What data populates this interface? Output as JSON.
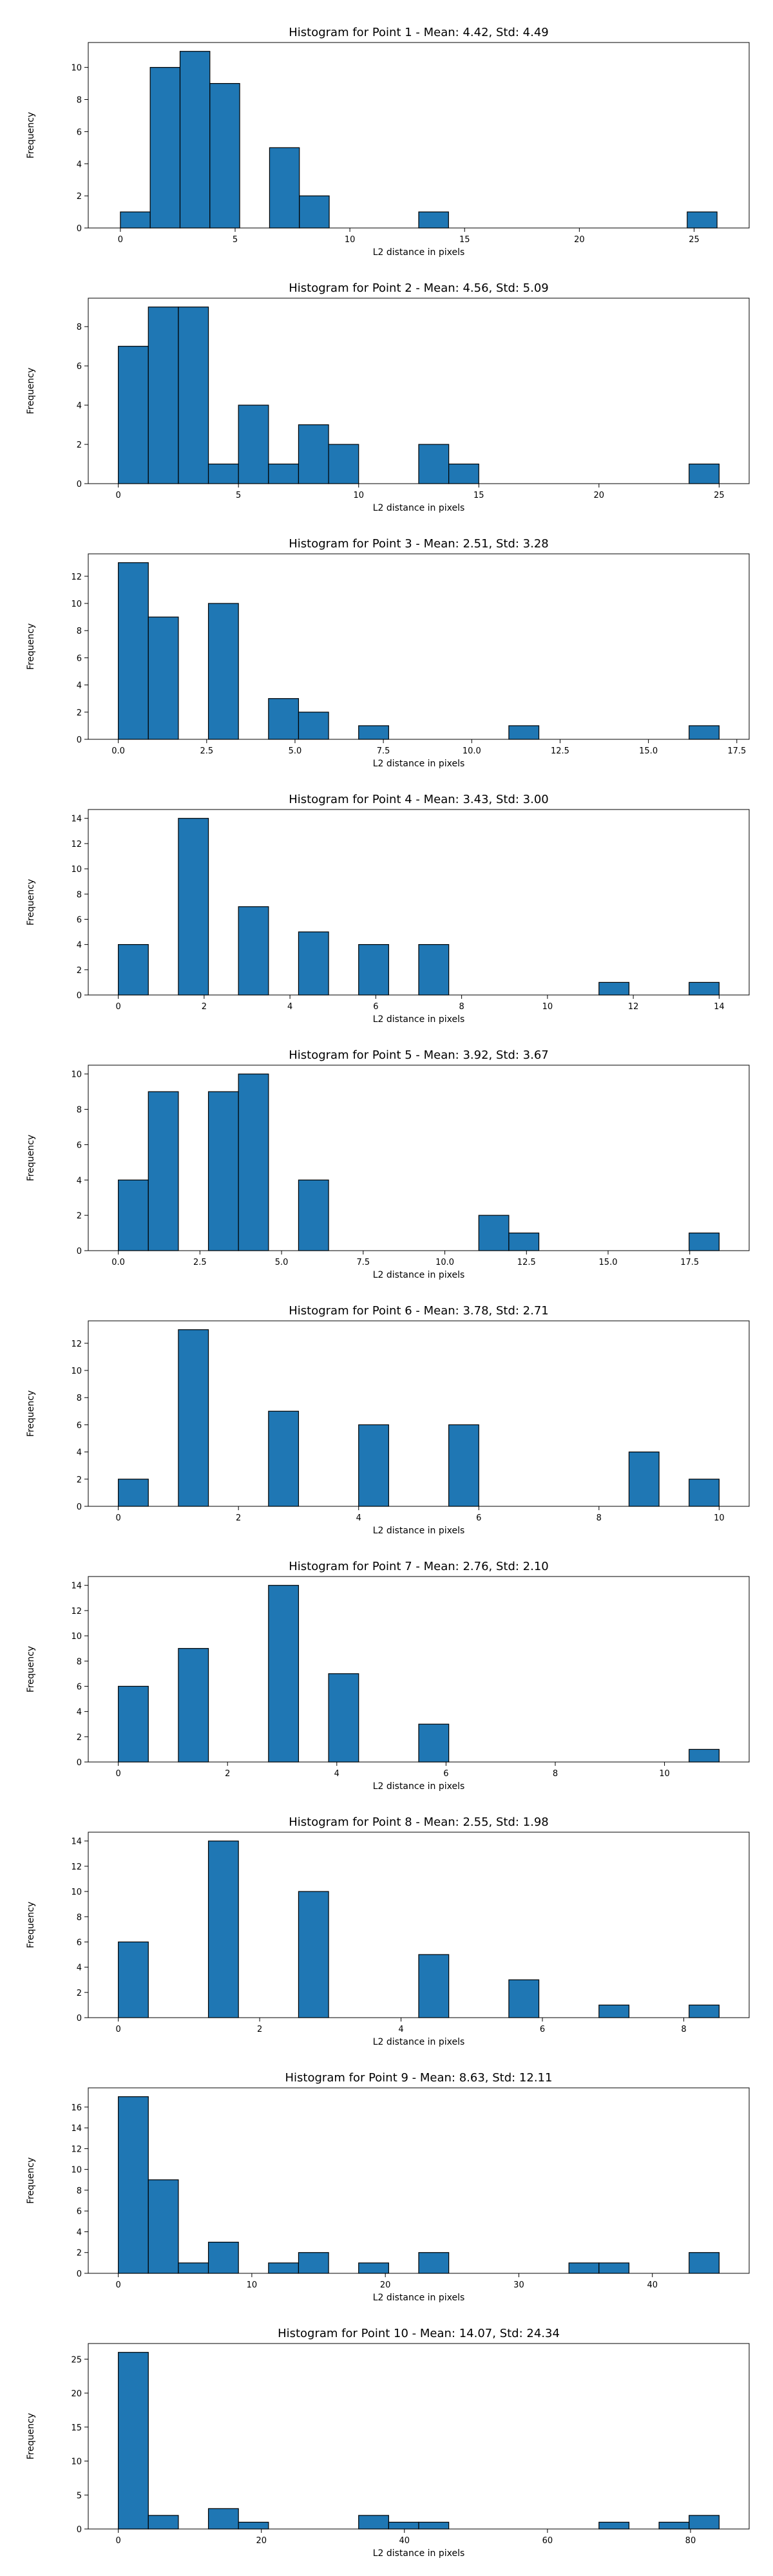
{
  "colors": {
    "bar_fill": "#1f77b4",
    "bar_edge": "#000000",
    "axis": "#000000",
    "background": "#ffffff"
  },
  "chart_data": [
    {
      "type": "bar",
      "title": "Histogram for Point 1 - Mean: 4.42, Std: 4.49",
      "xlabel": "L2 distance in pixels",
      "ylabel": "Frequency",
      "xlim": [
        -1.4,
        27.4
      ],
      "ylim": [
        0,
        11.55
      ],
      "xticks": [
        0,
        5,
        10,
        15,
        20,
        25
      ],
      "xtick_labels": [
        "0",
        "5",
        "10",
        "15",
        "20",
        "25"
      ],
      "yticks": [
        0,
        2,
        4,
        6,
        8,
        10
      ],
      "ytick_labels": [
        "0",
        "2",
        "4",
        "6",
        "8",
        "10"
      ],
      "grid": false,
      "bins": [
        {
          "x0": 0.0,
          "x1": 1.3,
          "count": 1
        },
        {
          "x0": 1.3,
          "x1": 2.6,
          "count": 10
        },
        {
          "x0": 2.6,
          "x1": 3.9,
          "count": 11
        },
        {
          "x0": 3.9,
          "x1": 5.2,
          "count": 9
        },
        {
          "x0": 6.5,
          "x1": 7.8,
          "count": 5
        },
        {
          "x0": 7.8,
          "x1": 9.1,
          "count": 2
        },
        {
          "x0": 13.0,
          "x1": 14.3,
          "count": 1
        },
        {
          "x0": 24.7,
          "x1": 26.0,
          "count": 1
        }
      ]
    },
    {
      "type": "bar",
      "title": "Histogram for Point 2 - Mean: 4.56, Std: 5.09",
      "xlabel": "L2 distance in pixels",
      "ylabel": "Frequency",
      "xlim": [
        -1.25,
        26.25
      ],
      "ylim": [
        0,
        9.45
      ],
      "xticks": [
        0,
        5,
        10,
        15,
        20,
        25
      ],
      "xtick_labels": [
        "0",
        "5",
        "10",
        "15",
        "20",
        "25"
      ],
      "yticks": [
        0,
        2,
        4,
        6,
        8
      ],
      "ytick_labels": [
        "0",
        "2",
        "4",
        "6",
        "8"
      ],
      "grid": false,
      "bins": [
        {
          "x0": 0.0,
          "x1": 1.25,
          "count": 7
        },
        {
          "x0": 1.25,
          "x1": 2.5,
          "count": 9
        },
        {
          "x0": 2.5,
          "x1": 3.75,
          "count": 9
        },
        {
          "x0": 3.75,
          "x1": 5.0,
          "count": 1
        },
        {
          "x0": 5.0,
          "x1": 6.25,
          "count": 4
        },
        {
          "x0": 6.25,
          "x1": 7.5,
          "count": 1
        },
        {
          "x0": 7.5,
          "x1": 8.75,
          "count": 3
        },
        {
          "x0": 8.75,
          "x1": 10.0,
          "count": 2
        },
        {
          "x0": 12.5,
          "x1": 13.75,
          "count": 2
        },
        {
          "x0": 13.75,
          "x1": 15.0,
          "count": 1
        },
        {
          "x0": 23.75,
          "x1": 25.0,
          "count": 1
        }
      ]
    },
    {
      "type": "bar",
      "title": "Histogram for Point 3 - Mean: 2.51, Std: 3.28",
      "xlabel": "L2 distance in pixels",
      "ylabel": "Frequency",
      "xlim": [
        -0.85,
        17.85
      ],
      "ylim": [
        0,
        13.65
      ],
      "xticks": [
        0,
        2.5,
        5,
        7.5,
        10,
        12.5,
        15,
        17.5
      ],
      "xtick_labels": [
        "0.0",
        "2.5",
        "5.0",
        "7.5",
        "10.0",
        "12.5",
        "15.0",
        "17.5"
      ],
      "yticks": [
        0,
        2,
        4,
        6,
        8,
        10,
        12
      ],
      "ytick_labels": [
        "0",
        "2",
        "4",
        "6",
        "8",
        "10",
        "12"
      ],
      "grid": false,
      "bins": [
        {
          "x0": 0.0,
          "x1": 0.85,
          "count": 13
        },
        {
          "x0": 0.85,
          "x1": 1.7,
          "count": 9
        },
        {
          "x0": 2.55,
          "x1": 3.4,
          "count": 10
        },
        {
          "x0": 4.25,
          "x1": 5.1,
          "count": 3
        },
        {
          "x0": 5.1,
          "x1": 5.95,
          "count": 2
        },
        {
          "x0": 6.8,
          "x1": 7.65,
          "count": 1
        },
        {
          "x0": 11.05,
          "x1": 11.9,
          "count": 1
        },
        {
          "x0": 16.15,
          "x1": 17.0,
          "count": 1
        }
      ]
    },
    {
      "type": "bar",
      "title": "Histogram for Point 4 - Mean: 3.43, Std: 3.00",
      "xlabel": "L2 distance in pixels",
      "ylabel": "Frequency",
      "xlim": [
        -0.7,
        14.7
      ],
      "ylim": [
        0,
        14.7
      ],
      "xticks": [
        0,
        2,
        4,
        6,
        8,
        10,
        12,
        14
      ],
      "xtick_labels": [
        "0",
        "2",
        "4",
        "6",
        "8",
        "10",
        "12",
        "14"
      ],
      "yticks": [
        0,
        2,
        4,
        6,
        8,
        10,
        12,
        14
      ],
      "ytick_labels": [
        "0",
        "2",
        "4",
        "6",
        "8",
        "10",
        "12",
        "14"
      ],
      "grid": false,
      "bins": [
        {
          "x0": 0.0,
          "x1": 0.7,
          "count": 4
        },
        {
          "x0": 1.4,
          "x1": 2.1,
          "count": 14
        },
        {
          "x0": 2.8,
          "x1": 3.5,
          "count": 7
        },
        {
          "x0": 4.2,
          "x1": 4.9,
          "count": 5
        },
        {
          "x0": 5.6,
          "x1": 6.3,
          "count": 4
        },
        {
          "x0": 7.0,
          "x1": 7.7,
          "count": 4
        },
        {
          "x0": 11.2,
          "x1": 11.9,
          "count": 1
        },
        {
          "x0": 13.3,
          "x1": 14.0,
          "count": 1
        }
      ]
    },
    {
      "type": "bar",
      "title": "Histogram for Point 5 - Mean: 3.92, Std: 3.67",
      "xlabel": "L2 distance in pixels",
      "ylabel": "Frequency",
      "xlim": [
        -0.92,
        19.32
      ],
      "ylim": [
        0,
        10.5
      ],
      "xticks": [
        0,
        2.5,
        5,
        7.5,
        10,
        12.5,
        15,
        17.5
      ],
      "xtick_labels": [
        "0.0",
        "2.5",
        "5.0",
        "7.5",
        "10.0",
        "12.5",
        "15.0",
        "17.5"
      ],
      "yticks": [
        0,
        2,
        4,
        6,
        8,
        10
      ],
      "ytick_labels": [
        "0",
        "2",
        "4",
        "6",
        "8",
        "10"
      ],
      "grid": false,
      "bins": [
        {
          "x0": 0.0,
          "x1": 0.92,
          "count": 4
        },
        {
          "x0": 0.92,
          "x1": 1.84,
          "count": 9
        },
        {
          "x0": 2.76,
          "x1": 3.68,
          "count": 9
        },
        {
          "x0": 3.68,
          "x1": 4.6,
          "count": 10
        },
        {
          "x0": 5.52,
          "x1": 6.44,
          "count": 4
        },
        {
          "x0": 11.04,
          "x1": 11.96,
          "count": 2
        },
        {
          "x0": 11.96,
          "x1": 12.88,
          "count": 1
        },
        {
          "x0": 17.48,
          "x1": 18.4,
          "count": 1
        }
      ]
    },
    {
      "type": "bar",
      "title": "Histogram for Point 6 - Mean: 3.78, Std: 2.71",
      "xlabel": "L2 distance in pixels",
      "ylabel": "Frequency",
      "xlim": [
        -0.5,
        10.5
      ],
      "ylim": [
        0,
        13.65
      ],
      "xticks": [
        0,
        2,
        4,
        6,
        8,
        10
      ],
      "xtick_labels": [
        "0",
        "2",
        "4",
        "6",
        "8",
        "10"
      ],
      "yticks": [
        0,
        2,
        4,
        6,
        8,
        10,
        12
      ],
      "ytick_labels": [
        "0",
        "2",
        "4",
        "6",
        "8",
        "10",
        "12"
      ],
      "grid": false,
      "bins": [
        {
          "x0": 0.0,
          "x1": 0.5,
          "count": 2
        },
        {
          "x0": 1.0,
          "x1": 1.5,
          "count": 13
        },
        {
          "x0": 2.5,
          "x1": 3.0,
          "count": 7
        },
        {
          "x0": 4.0,
          "x1": 4.5,
          "count": 6
        },
        {
          "x0": 5.5,
          "x1": 6.0,
          "count": 6
        },
        {
          "x0": 8.5,
          "x1": 9.0,
          "count": 4
        },
        {
          "x0": 9.5,
          "x1": 10.0,
          "count": 2
        }
      ]
    },
    {
      "type": "bar",
      "title": "Histogram for Point 7 - Mean: 2.76, Std: 2.10",
      "xlabel": "L2 distance in pixels",
      "ylabel": "Frequency",
      "xlim": [
        -0.55,
        11.55
      ],
      "ylim": [
        0,
        14.7
      ],
      "xticks": [
        0,
        2,
        4,
        6,
        8,
        10
      ],
      "xtick_labels": [
        "0",
        "2",
        "4",
        "6",
        "8",
        "10"
      ],
      "yticks": [
        0,
        2,
        4,
        6,
        8,
        10,
        12,
        14
      ],
      "ytick_labels": [
        "0",
        "2",
        "4",
        "6",
        "8",
        "10",
        "12",
        "14"
      ],
      "grid": false,
      "bins": [
        {
          "x0": 0.0,
          "x1": 0.55,
          "count": 6
        },
        {
          "x0": 1.1,
          "x1": 1.65,
          "count": 9
        },
        {
          "x0": 2.75,
          "x1": 3.3,
          "count": 14
        },
        {
          "x0": 3.85,
          "x1": 4.4,
          "count": 7
        },
        {
          "x0": 5.5,
          "x1": 6.05,
          "count": 3
        },
        {
          "x0": 10.45,
          "x1": 11.0,
          "count": 1
        }
      ]
    },
    {
      "type": "bar",
      "title": "Histogram for Point 8 - Mean: 2.55, Std: 1.98",
      "xlabel": "L2 distance in pixels",
      "ylabel": "Frequency",
      "xlim": [
        -0.425,
        8.925
      ],
      "ylim": [
        0,
        14.7
      ],
      "xticks": [
        0,
        2,
        4,
        6,
        8
      ],
      "xtick_labels": [
        "0",
        "2",
        "4",
        "6",
        "8"
      ],
      "yticks": [
        0,
        2,
        4,
        6,
        8,
        10,
        12,
        14
      ],
      "ytick_labels": [
        "0",
        "2",
        "4",
        "6",
        "8",
        "10",
        "12",
        "14"
      ],
      "grid": false,
      "bins": [
        {
          "x0": 0.0,
          "x1": 0.425,
          "count": 6
        },
        {
          "x0": 1.275,
          "x1": 1.7,
          "count": 14
        },
        {
          "x0": 2.55,
          "x1": 2.975,
          "count": 10
        },
        {
          "x0": 4.25,
          "x1": 4.675,
          "count": 5
        },
        {
          "x0": 5.525,
          "x1": 5.95,
          "count": 3
        },
        {
          "x0": 6.8,
          "x1": 7.225,
          "count": 1
        },
        {
          "x0": 8.075,
          "x1": 8.5,
          "count": 1
        }
      ]
    },
    {
      "type": "bar",
      "title": "Histogram for Point 9 - Mean: 8.63, Std: 12.11",
      "xlabel": "L2 distance in pixels",
      "ylabel": "Frequency",
      "xlim": [
        -2.25,
        47.25
      ],
      "ylim": [
        0,
        17.85
      ],
      "xticks": [
        0,
        10,
        20,
        30,
        40
      ],
      "xtick_labels": [
        "0",
        "10",
        "20",
        "30",
        "40"
      ],
      "yticks": [
        0,
        2,
        4,
        6,
        8,
        10,
        12,
        14,
        16
      ],
      "ytick_labels": [
        "0",
        "2",
        "4",
        "6",
        "8",
        "10",
        "12",
        "14",
        "16"
      ],
      "grid": false,
      "bins": [
        {
          "x0": 0.0,
          "x1": 2.25,
          "count": 17
        },
        {
          "x0": 2.25,
          "x1": 4.5,
          "count": 9
        },
        {
          "x0": 4.5,
          "x1": 6.75,
          "count": 1
        },
        {
          "x0": 6.75,
          "x1": 9.0,
          "count": 3
        },
        {
          "x0": 11.25,
          "x1": 13.5,
          "count": 1
        },
        {
          "x0": 13.5,
          "x1": 15.75,
          "count": 2
        },
        {
          "x0": 18.0,
          "x1": 20.25,
          "count": 1
        },
        {
          "x0": 22.5,
          "x1": 24.75,
          "count": 2
        },
        {
          "x0": 33.75,
          "x1": 36.0,
          "count": 1
        },
        {
          "x0": 36.0,
          "x1": 38.25,
          "count": 1
        },
        {
          "x0": 42.75,
          "x1": 45.0,
          "count": 2
        }
      ]
    },
    {
      "type": "bar",
      "title": "Histogram for Point 10 - Mean: 14.07, Std: 24.34",
      "xlabel": "L2 distance in pixels",
      "ylabel": "Frequency",
      "xlim": [
        -4.2,
        88.2
      ],
      "ylim": [
        0,
        27.3
      ],
      "xticks": [
        0,
        20,
        40,
        60,
        80
      ],
      "xtick_labels": [
        "0",
        "20",
        "40",
        "60",
        "80"
      ],
      "yticks": [
        0,
        5,
        10,
        15,
        20,
        25
      ],
      "ytick_labels": [
        "0",
        "5",
        "10",
        "15",
        "20",
        "25"
      ],
      "grid": false,
      "bins": [
        {
          "x0": 0.0,
          "x1": 4.2,
          "count": 26
        },
        {
          "x0": 4.2,
          "x1": 8.4,
          "count": 2
        },
        {
          "x0": 12.6,
          "x1": 16.8,
          "count": 3
        },
        {
          "x0": 16.8,
          "x1": 21.0,
          "count": 1
        },
        {
          "x0": 33.6,
          "x1": 37.8,
          "count": 2
        },
        {
          "x0": 37.8,
          "x1": 42.0,
          "count": 1
        },
        {
          "x0": 42.0,
          "x1": 46.2,
          "count": 1
        },
        {
          "x0": 67.2,
          "x1": 71.4,
          "count": 1
        },
        {
          "x0": 75.6,
          "x1": 79.8,
          "count": 1
        },
        {
          "x0": 79.8,
          "x1": 84.0,
          "count": 2
        }
      ]
    }
  ]
}
